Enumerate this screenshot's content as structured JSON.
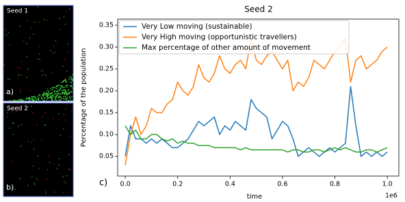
{
  "panels": [
    {
      "title": "Seed 1",
      "label": "a)"
    },
    {
      "title": "Seed 2",
      "label": "b)"
    }
  ],
  "panel_label": "c)",
  "chart_data": {
    "type": "line",
    "title": "Seed 2",
    "xlabel": "time",
    "ylabel": "Percentage of the population",
    "x_offset_label": "1e6",
    "x": [
      0,
      0.02,
      0.04,
      0.06,
      0.08,
      0.1,
      0.12,
      0.14,
      0.16,
      0.18,
      0.2,
      0.22,
      0.24,
      0.26,
      0.28,
      0.3,
      0.32,
      0.34,
      0.36,
      0.38,
      0.4,
      0.42,
      0.44,
      0.46,
      0.48,
      0.5,
      0.52,
      0.54,
      0.56,
      0.58,
      0.6,
      0.62,
      0.64,
      0.66,
      0.68,
      0.7,
      0.72,
      0.74,
      0.76,
      0.78,
      0.8,
      0.82,
      0.84,
      0.86,
      0.88,
      0.9,
      0.92,
      0.94,
      0.96,
      0.98,
      1.0
    ],
    "series": [
      {
        "name": "Very Low moving (sustainable)",
        "color": "#1f77b4",
        "values": [
          0.05,
          0.12,
          0.09,
          0.09,
          0.08,
          0.09,
          0.08,
          0.09,
          0.08,
          0.07,
          0.07,
          0.08,
          0.09,
          0.11,
          0.13,
          0.12,
          0.13,
          0.14,
          0.1,
          0.12,
          0.11,
          0.13,
          0.12,
          0.11,
          0.18,
          0.16,
          0.15,
          0.14,
          0.09,
          0.11,
          0.13,
          0.12,
          0.09,
          0.05,
          0.06,
          0.07,
          0.06,
          0.05,
          0.06,
          0.07,
          0.06,
          0.07,
          0.08,
          0.21,
          0.12,
          0.05,
          0.06,
          0.05,
          0.06,
          0.05,
          0.06
        ]
      },
      {
        "name": "Very High moving (opportunistic travellers)",
        "color": "#ff7f0e",
        "values": [
          0.03,
          0.1,
          0.14,
          0.1,
          0.12,
          0.16,
          0.15,
          0.15,
          0.17,
          0.18,
          0.22,
          0.2,
          0.19,
          0.21,
          0.26,
          0.23,
          0.22,
          0.24,
          0.28,
          0.25,
          0.24,
          0.26,
          0.27,
          0.25,
          0.32,
          0.27,
          0.26,
          0.28,
          0.29,
          0.27,
          0.25,
          0.27,
          0.2,
          0.22,
          0.21,
          0.23,
          0.27,
          0.26,
          0.25,
          0.27,
          0.29,
          0.3,
          0.32,
          0.22,
          0.27,
          0.28,
          0.25,
          0.26,
          0.27,
          0.29,
          0.3
        ]
      },
      {
        "name": "Max percentage of other amount of movement",
        "color": "#2ca02c",
        "values": [
          0.12,
          0.1,
          0.11,
          0.09,
          0.09,
          0.1,
          0.1,
          0.09,
          0.085,
          0.09,
          0.08,
          0.085,
          0.08,
          0.08,
          0.075,
          0.075,
          0.075,
          0.07,
          0.07,
          0.07,
          0.07,
          0.07,
          0.065,
          0.07,
          0.065,
          0.065,
          0.065,
          0.065,
          0.065,
          0.065,
          0.065,
          0.06,
          0.065,
          0.065,
          0.06,
          0.06,
          0.065,
          0.065,
          0.06,
          0.065,
          0.07,
          0.065,
          0.07,
          0.065,
          0.06,
          0.06,
          0.065,
          0.065,
          0.06,
          0.065,
          0.07
        ]
      }
    ],
    "xlim": [
      -0.029,
      1.044
    ],
    "ylim": [
      0.005,
      0.364
    ],
    "xticks": [
      {
        "value": 0,
        "label": "0.0"
      },
      0.2,
      0.4,
      0.6,
      0.8,
      {
        "value": 1,
        "label": "1.0"
      }
    ],
    "yticks": [
      0.05,
      {
        "value": 0.1,
        "label": "0.10"
      },
      0.15,
      {
        "value": 0.2,
        "label": "0.20"
      },
      0.25,
      {
        "value": 0.3,
        "label": "0.30"
      },
      0.35
    ],
    "legend": "upper left"
  }
}
